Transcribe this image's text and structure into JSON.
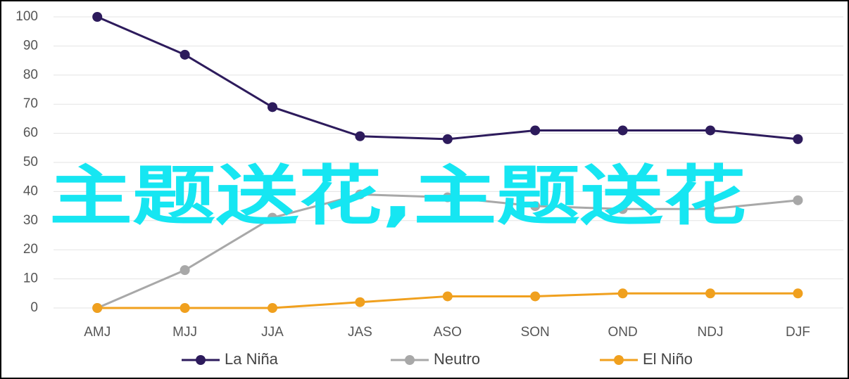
{
  "chart_data": {
    "type": "line",
    "categories": [
      "AMJ",
      "MJJ",
      "JJA",
      "JAS",
      "ASO",
      "SON",
      "OND",
      "NDJ",
      "DJF"
    ],
    "series": [
      {
        "name": "La Niña",
        "color": "#2d1b5c",
        "values": [
          100,
          87,
          69,
          59,
          58,
          61,
          61,
          61,
          58
        ]
      },
      {
        "name": "Neutro",
        "color": "#a8a8a8",
        "values": [
          0,
          13,
          31,
          39,
          38,
          35,
          34,
          34,
          37
        ]
      },
      {
        "name": "El Niño",
        "color": "#f0a01e",
        "values": [
          0,
          0,
          0,
          2,
          4,
          4,
          5,
          5,
          5
        ]
      }
    ],
    "ylim": [
      0,
      100
    ],
    "yticks": [
      0,
      10,
      20,
      30,
      40,
      50,
      60,
      70,
      80,
      90,
      100
    ],
    "grid": true,
    "legend": "bottom",
    "annotation": "主题送花,主题送花"
  }
}
